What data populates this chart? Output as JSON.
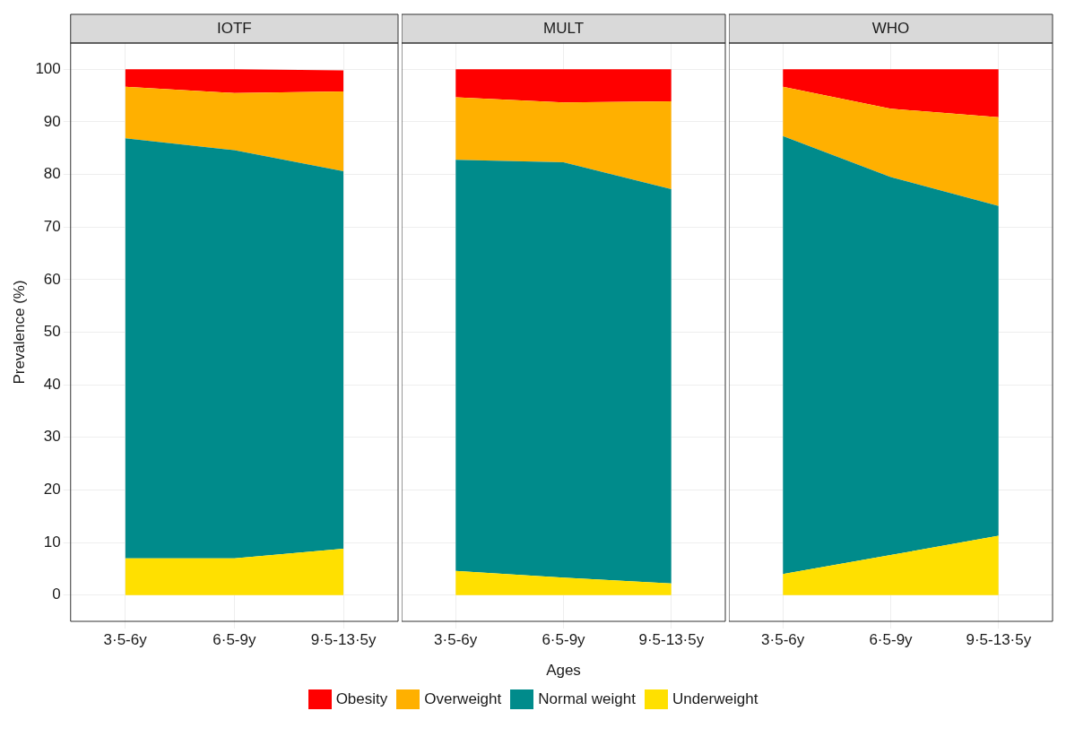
{
  "chart_data": [
    {
      "type": "area",
      "title": "IOTF",
      "ylabel": "Prevalence (%)",
      "stacked": true,
      "categories": [
        "3·5-6y",
        "6·5-9y",
        "9·5-13·5y"
      ],
      "ylim": [
        -5,
        105
      ],
      "yticks": [
        0,
        10,
        20,
        30,
        40,
        50,
        60,
        70,
        80,
        90,
        100
      ],
      "grid": true,
      "legend": "bottom",
      "series": [
        {
          "name": "Underweight",
          "color": "#ffe000",
          "values": [
            7.0,
            7.0,
            8.8
          ]
        },
        {
          "name": "Normal weight",
          "color": "#008b8b",
          "values": [
            79.9,
            77.6,
            71.8
          ]
        },
        {
          "name": "Overweight",
          "color": "#ffb000",
          "values": [
            9.8,
            10.9,
            15.2
          ]
        },
        {
          "name": "Obesity",
          "color": "#ff0000",
          "values": [
            3.3,
            4.5,
            4.0
          ]
        }
      ]
    },
    {
      "type": "area",
      "title": "MULT",
      "xlabel": "Ages",
      "stacked": true,
      "categories": [
        "3·5-6y",
        "6·5-9y",
        "9·5-13·5y"
      ],
      "ylim": [
        -5,
        105
      ],
      "yticks": [
        0,
        10,
        20,
        30,
        40,
        50,
        60,
        70,
        80,
        90,
        100
      ],
      "tick_labels": "x",
      "grid": true,
      "legend": "bottom",
      "series": [
        {
          "name": "Underweight",
          "color": "#ffe000",
          "values": [
            4.6,
            3.3,
            2.2
          ]
        },
        {
          "name": "Normal weight",
          "color": "#008b8b",
          "values": [
            78.2,
            79.0,
            75.0
          ]
        },
        {
          "name": "Overweight",
          "color": "#ffb000",
          "values": [
            11.9,
            11.4,
            16.7
          ]
        },
        {
          "name": "Obesity",
          "color": "#ff0000",
          "values": [
            5.3,
            6.3,
            6.1
          ]
        }
      ]
    },
    {
      "type": "area",
      "title": "WHO",
      "stacked": true,
      "categories": [
        "3·5-6y",
        "6·5-9y",
        "9·5-13·5y"
      ],
      "ylim": [
        -5,
        105
      ],
      "yticks": [
        0,
        10,
        20,
        30,
        40,
        50,
        60,
        70,
        80,
        90,
        100
      ],
      "tick_labels": "x",
      "grid": true,
      "legend": "bottom",
      "series": [
        {
          "name": "Underweight",
          "color": "#ffe000",
          "values": [
            4.0,
            7.6,
            11.3
          ]
        },
        {
          "name": "Normal weight",
          "color": "#008b8b",
          "values": [
            83.3,
            71.9,
            62.7
          ]
        },
        {
          "name": "Overweight",
          "color": "#ffb000",
          "values": [
            9.4,
            13.0,
            16.9
          ]
        },
        {
          "name": "Obesity",
          "color": "#ff0000",
          "values": [
            3.3,
            7.5,
            9.1
          ]
        }
      ]
    }
  ]
}
